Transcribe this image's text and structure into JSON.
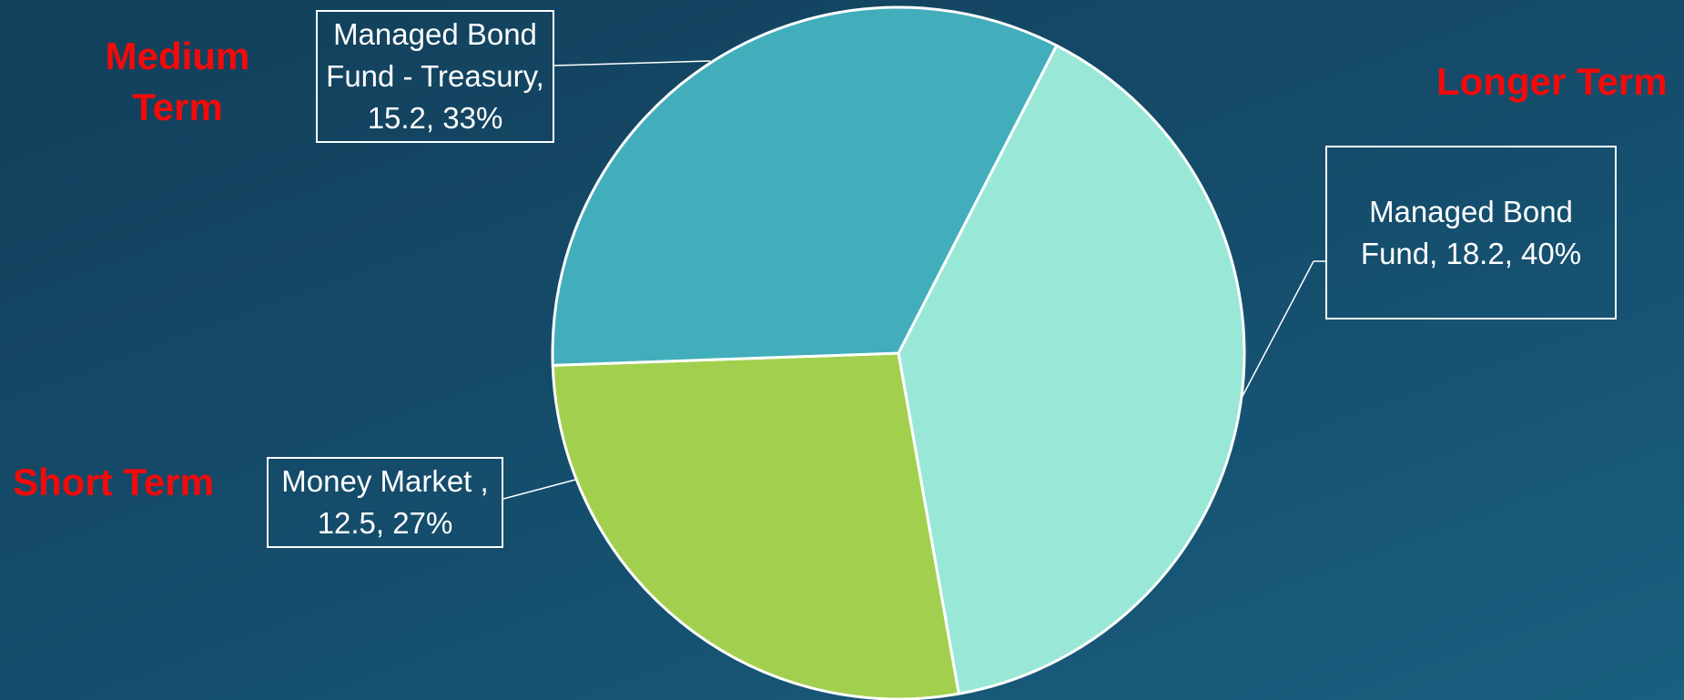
{
  "chart_data": {
    "type": "pie",
    "slices": [
      {
        "name": "Managed Bond Fund",
        "value": 18.2,
        "percent": "40%",
        "color": "#99e8d7",
        "label": "Managed Bond Fund, 18.2, 40%"
      },
      {
        "name": "Money Market ",
        "value": 12.5,
        "percent": "27%",
        "color": "#a2d04e",
        "label": "Money Market , 12.5, 27%"
      },
      {
        "name": "Managed Bond Fund - Treasury",
        "value": 15.2,
        "percent": "33%",
        "color": "#42aebc",
        "label": "Managed Bond Fund - Treasury, 15.2, 33%"
      }
    ],
    "slice_border_color": "#ffffff"
  },
  "annotations": {
    "medium_term": "Medium Term",
    "longer_term": "Longer Term",
    "short_term": "Short Term",
    "annotation_color": "#f40a0a"
  },
  "callouts": {
    "treasury": "Managed Bond Fund - Treasury, 15.2, 33%",
    "managed": "Managed Bond Fund, 18.2, 40%",
    "money": "Money Market , 12.5, 27%"
  }
}
